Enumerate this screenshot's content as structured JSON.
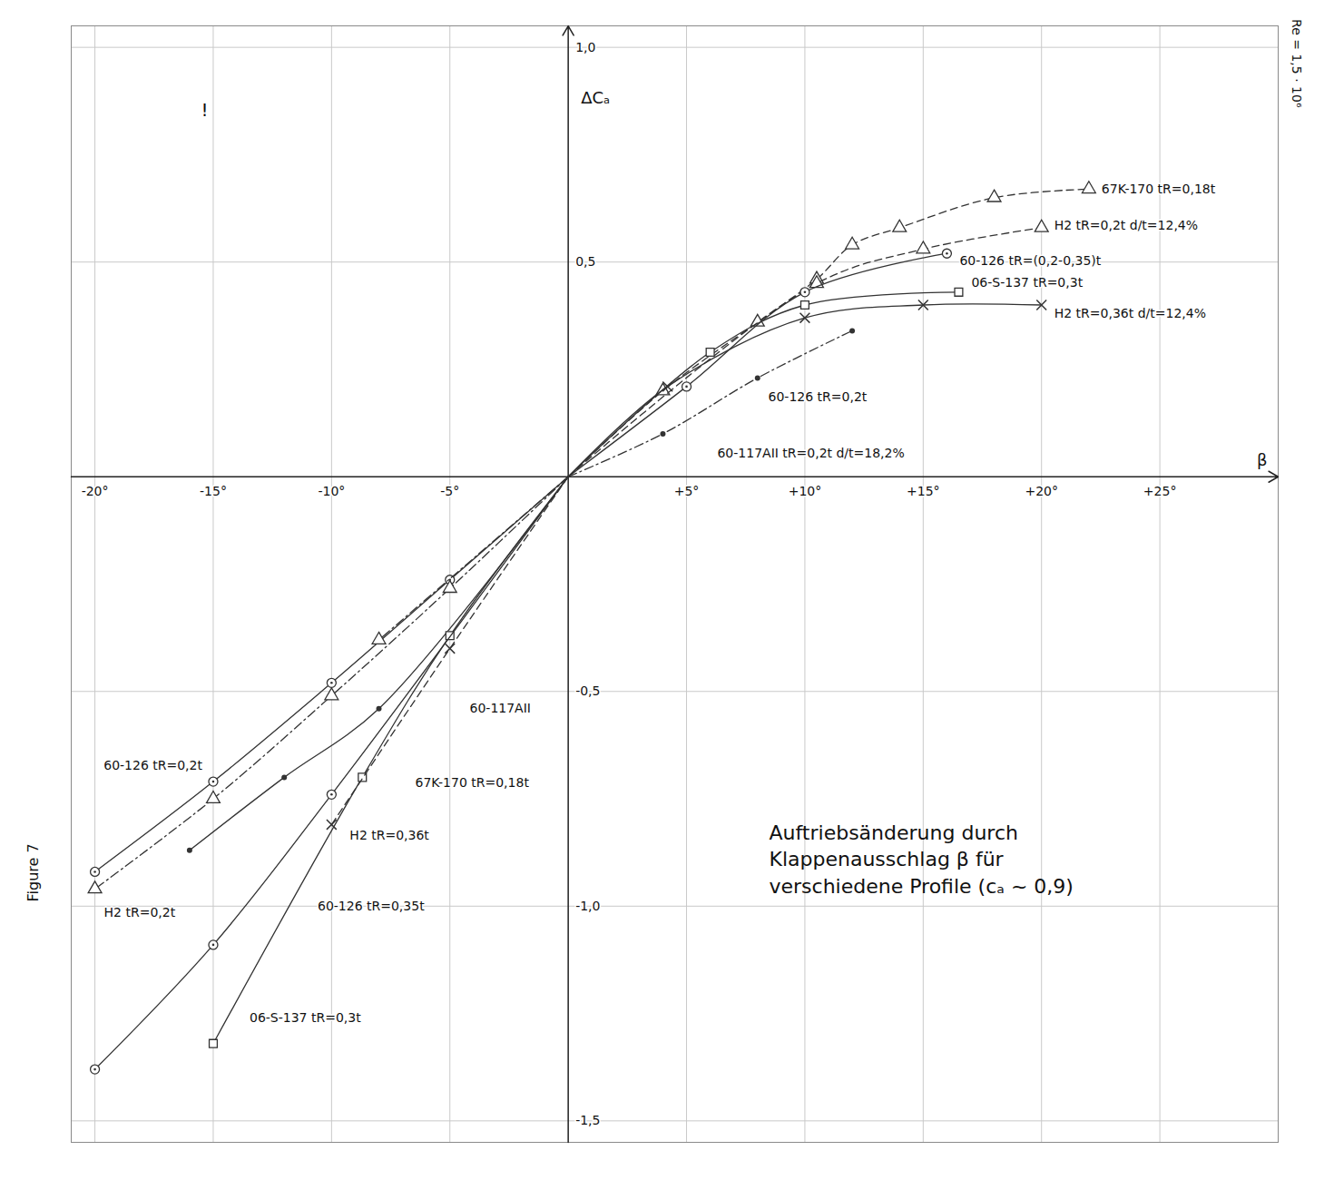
{
  "chart_data": {
    "type": "line",
    "title": "Auftriebsänderung durch Klappenausschlag β für verschiedene Profile (cₐ ~ 0,9)",
    "x_label": "β",
    "y_label": "ΔCₐ",
    "xlim": [
      -21,
      30
    ],
    "ylim": [
      -1.55,
      1.05
    ],
    "xticks": [
      {
        "value": -20,
        "label": "-20°"
      },
      {
        "value": -15,
        "label": "-15°"
      },
      {
        "value": -10,
        "label": "-10°"
      },
      {
        "value": -5,
        "label": "-5°"
      },
      {
        "value": 5,
        "label": "+5°"
      },
      {
        "value": 10,
        "label": "+10°"
      },
      {
        "value": 15,
        "label": "+15°"
      },
      {
        "value": 20,
        "label": "+20°"
      },
      {
        "value": 25,
        "label": "+25°"
      }
    ],
    "yticks": [
      {
        "value": 1,
        "label": "1,0"
      },
      {
        "value": 0.5,
        "label": "0,5"
      },
      {
        "value": -0.5,
        "label": "-0,5"
      },
      {
        "value": -1,
        "label": "-1,0"
      },
      {
        "value": -1.5,
        "label": "-1,5"
      }
    ],
    "grid": true,
    "color": "#333333",
    "series": [
      {
        "name": "67K-170 tR=0,18t",
        "marker": "triangle",
        "line_style": "dashed",
        "x": [
          0,
          4,
          8,
          10.5,
          12,
          14,
          18,
          22
        ],
        "values": [
          0,
          0.2,
          0.36,
          0.46,
          0.54,
          0.58,
          0.65,
          0.67
        ]
      },
      {
        "name": "H2 tR=0,2t d/t=12,4%",
        "marker": "triangle",
        "line_style": "dashed",
        "x": [
          0,
          10.5,
          15,
          20
        ],
        "values": [
          0,
          0.45,
          0.53,
          0.58
        ]
      },
      {
        "name": "60-126 tR=(0,2-0,35)t",
        "marker": "circle",
        "line_style": "solid",
        "x": [
          0,
          5,
          10,
          16
        ],
        "values": [
          0,
          0.21,
          0.43,
          0.52
        ]
      },
      {
        "name": "06-S-137 tR=0,3t",
        "marker": "square",
        "line_style": "solid",
        "x": [
          0,
          6,
          10,
          16.5
        ],
        "values": [
          0,
          0.29,
          0.4,
          0.43
        ]
      },
      {
        "name": "H2 tR=0,36t d/t=12,4%",
        "marker": "x",
        "line_style": "solid",
        "x": [
          0,
          4.2,
          10,
          15,
          20
        ],
        "values": [
          0,
          0.21,
          0.37,
          0.4,
          0.4
        ]
      },
      {
        "name": "60-117AII tR=0,2t d/t=18,2%",
        "marker": "dot",
        "line_style": "dashdot",
        "x": [
          0,
          4,
          8,
          12
        ],
        "values": [
          0,
          0.1,
          0.23,
          0.34
        ]
      },
      {
        "name": "60-126 tR=0,2t",
        "marker": "circle",
        "line_style": "solid",
        "x": [
          0,
          -5,
          -10,
          -15,
          -20
        ],
        "values": [
          0,
          -0.24,
          -0.48,
          -0.71,
          -0.92
        ]
      },
      {
        "name": "H2 tR=0,2t",
        "marker": "triangle",
        "line_style": "dashdot",
        "x": [
          0,
          -5,
          -10,
          -15,
          -20
        ],
        "values": [
          0,
          -0.26,
          -0.51,
          -0.75,
          -0.96
        ]
      },
      {
        "name": "67K-170 tR=0,18t",
        "marker": "triangle",
        "line_style": "dashdot",
        "x": [
          0,
          -8
        ],
        "values": [
          0,
          -0.38
        ]
      },
      {
        "name": "60-117AII",
        "marker": "dot",
        "line_style": "solid",
        "x": [
          0,
          -8,
          -12,
          -16
        ],
        "values": [
          0,
          -0.54,
          -0.7,
          -0.87
        ]
      },
      {
        "name": "06-S-137 tR=0,3t",
        "marker": "square",
        "line_style": "solid",
        "x": [
          0,
          -5,
          -8.7,
          -15
        ],
        "values": [
          0,
          -0.37,
          -0.7,
          -1.32
        ]
      },
      {
        "name": "H2 tR=0,36t",
        "marker": "x",
        "line_style": "dashed",
        "x": [
          0,
          -5,
          -10
        ],
        "values": [
          0,
          -0.4,
          -0.81
        ]
      },
      {
        "name": "60-126 tR=0,35t",
        "marker": "circle",
        "line_style": "solid",
        "x": [
          0,
          -10,
          -15,
          -20
        ],
        "values": [
          0,
          -0.74,
          -1.09,
          -1.38
        ]
      }
    ],
    "annotations": [
      {
        "text": "60-126 tR=0,2t",
        "x": 5,
        "y": 0.21
      }
    ],
    "notes": [
      "!"
    ],
    "side_label": "Re = 1,5 · 10⁶",
    "figure_label": "Figure 7"
  }
}
